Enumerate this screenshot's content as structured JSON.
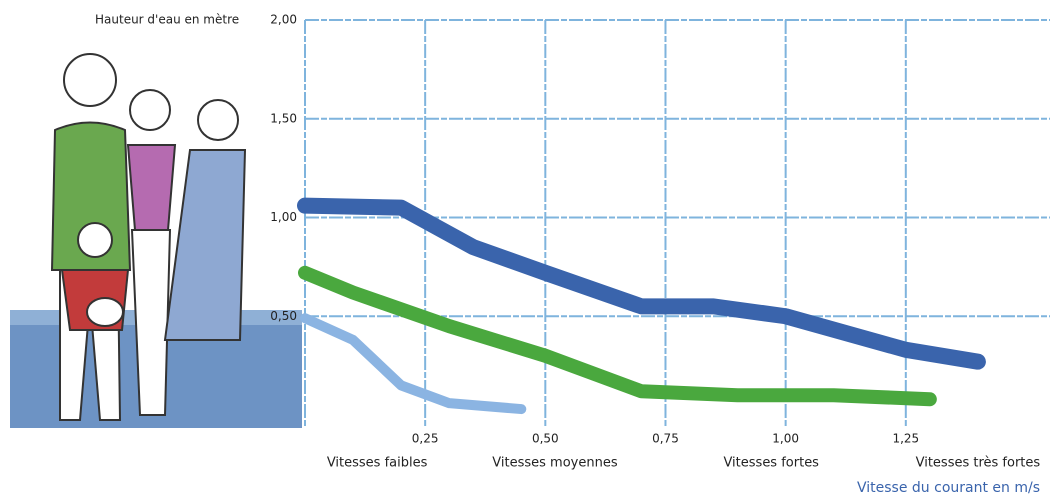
{
  "chart_data": {
    "type": "line",
    "y_label": "Hauteur d'eau en mètre",
    "x_label": "Vitesse du courant en m/s",
    "xlim": [
      0,
      1.55
    ],
    "ylim": [
      0,
      2.0
    ],
    "xticks": [
      {
        "value": 0.25,
        "label": "0,25"
      },
      {
        "value": 0.5,
        "label": "0,50"
      },
      {
        "value": 0.75,
        "label": "0,75"
      },
      {
        "value": 1.0,
        "label": "1,00"
      },
      {
        "value": 1.25,
        "label": "1,25"
      }
    ],
    "yticks": [
      {
        "value": 0.5,
        "label": "0,50"
      },
      {
        "value": 1.0,
        "label": "1,00"
      },
      {
        "value": 1.5,
        "label": "1,50"
      },
      {
        "value": 2.0,
        "label": "2,00"
      }
    ],
    "grid": true,
    "annotations": [
      {
        "text": "Vitesses faibles",
        "x": 0.15
      },
      {
        "text": "Vitesses moyennes",
        "x": 0.52
      },
      {
        "text": "Vitesses fortes",
        "x": 0.97
      },
      {
        "text": "Vitesses très fortes",
        "x": 1.4
      }
    ],
    "series": [
      {
        "color": "#3a64ac",
        "width": 16,
        "x": [
          0,
          0.2,
          0.35,
          0.5,
          0.7,
          0.85,
          1.0,
          1.25,
          1.4
        ],
        "values": [
          1.06,
          1.05,
          0.85,
          0.72,
          0.55,
          0.55,
          0.5,
          0.33,
          0.27
        ]
      },
      {
        "color": "#4aa83e",
        "width": 14,
        "x": [
          0,
          0.1,
          0.3,
          0.5,
          0.7,
          0.9,
          1.1,
          1.3
        ],
        "values": [
          0.72,
          0.62,
          0.45,
          0.3,
          0.12,
          0.1,
          0.1,
          0.08
        ]
      },
      {
        "color": "#8bb4e2",
        "width": 10,
        "x": [
          0,
          0.1,
          0.2,
          0.3,
          0.45
        ],
        "values": [
          0.49,
          0.38,
          0.15,
          0.06,
          0.03
        ]
      }
    ]
  }
}
